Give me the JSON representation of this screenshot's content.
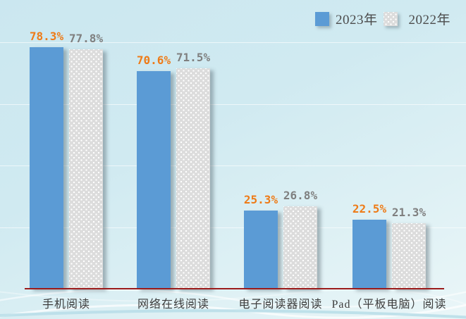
{
  "chart_data": {
    "type": "bar",
    "title": "",
    "xlabel": "",
    "ylabel": "",
    "value_suffix": "%",
    "categories": [
      "手机阅读",
      "网络在线阅读",
      "电子阅读器阅读",
      "Pad（平板电脑）阅读"
    ],
    "series": [
      {
        "name": "2023年",
        "values": [
          78.3,
          70.6,
          25.3,
          22.5
        ],
        "color": "#5B9BD5",
        "label_color": "#EE7B17",
        "pattern": "solid"
      },
      {
        "name": "2022年",
        "values": [
          77.8,
          71.5,
          26.8,
          21.3
        ],
        "color": "#DCDCDC",
        "label_color": "#7F7F7F",
        "pattern": "dots"
      }
    ],
    "ylim": [
      0,
      80
    ],
    "gridline_step": 20,
    "grid": true,
    "legend_position": "top-right",
    "axis_color": "#9B1B1B",
    "background_color": "#D0EAF1"
  }
}
